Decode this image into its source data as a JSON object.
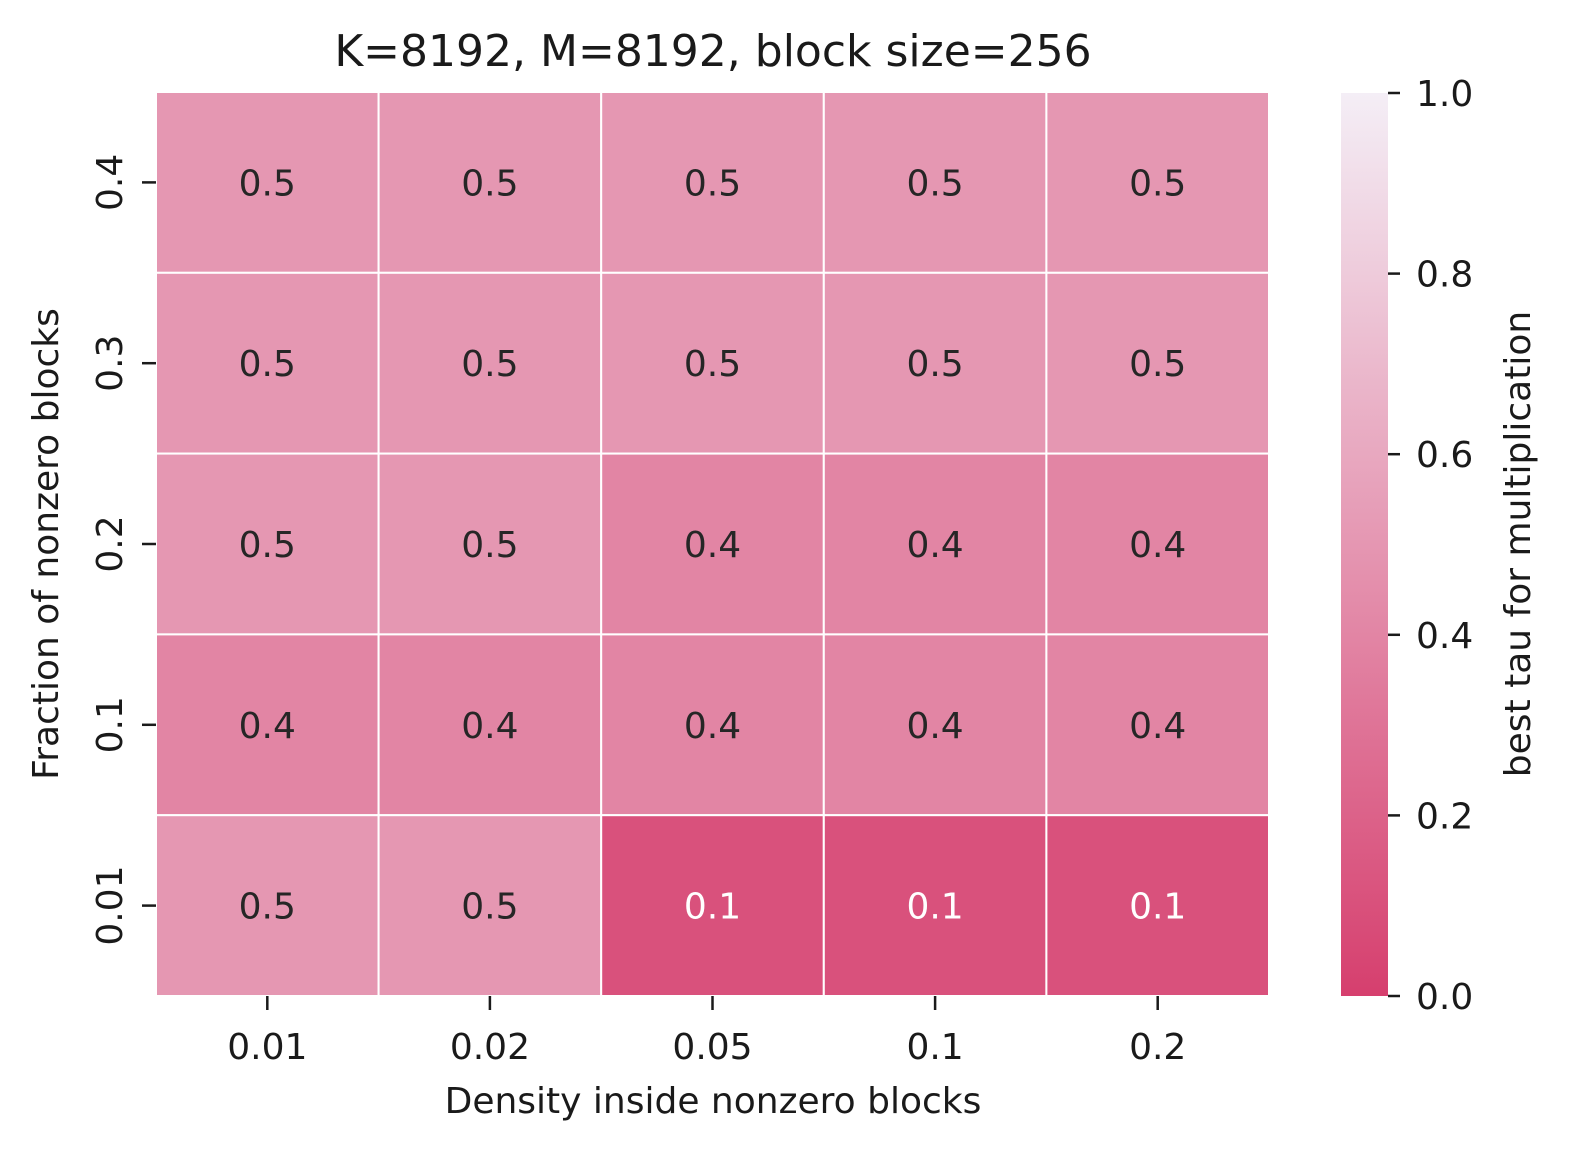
{
  "chart_data": {
    "type": "heatmap",
    "title": "K=8192, M=8192, block size=256",
    "xlabel": "Density inside nonzero blocks",
    "ylabel": "Fraction of nonzero blocks",
    "x_categories": [
      "0.01",
      "0.02",
      "0.05",
      "0.1",
      "0.2"
    ],
    "y_categories": [
      "0.4",
      "0.3",
      "0.2",
      "0.1",
      "0.01"
    ],
    "values": [
      [
        0.5,
        0.5,
        0.5,
        0.5,
        0.5
      ],
      [
        0.5,
        0.5,
        0.5,
        0.5,
        0.5
      ],
      [
        0.5,
        0.5,
        0.4,
        0.4,
        0.4
      ],
      [
        0.4,
        0.4,
        0.4,
        0.4,
        0.4
      ],
      [
        0.5,
        0.5,
        0.1,
        0.1,
        0.1
      ]
    ],
    "colorbar": {
      "label": "best tau for multiplication",
      "vmin": 0.0,
      "vmax": 1.0,
      "ticks": [
        "0.0",
        "0.2",
        "0.4",
        "0.6",
        "0.8",
        "1.0"
      ],
      "color_low": "#d63f6e",
      "color_high": "#f4eef6"
    },
    "annotation_colors": {
      "dark": "#262626",
      "light": "#ffffff"
    },
    "cell_border_color": "#ffffff"
  }
}
